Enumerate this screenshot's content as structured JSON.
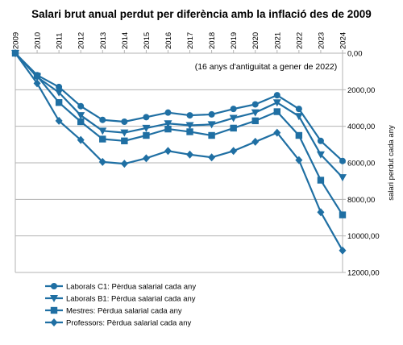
{
  "chart_data": {
    "type": "line",
    "title": "Salari brut anual perdut per diferència amb la inflació des de 2009",
    "annotation": "(16 anys d'antiguitat a gener de 2022)",
    "xlabel": "",
    "ylabel": "salari perdut cada any",
    "x": [
      "2009",
      "2010",
      "2011",
      "2012",
      "2013",
      "2014",
      "2015",
      "2016",
      "2017",
      "2018",
      "2019",
      "2020",
      "2021",
      "2022",
      "2023",
      "2024"
    ],
    "yticks": [
      "0,00",
      "2000,00",
      "4000,00",
      "6000,00",
      "8000,00",
      "10000,00",
      "12000,00"
    ],
    "ylim": [
      0,
      12000
    ],
    "y_inverted": true,
    "y_axis_side": "right",
    "x_axis_position": "top",
    "grid": "horizontal",
    "legend_placement": "bottom-left",
    "series": [
      {
        "name": "Laborals C1: Pèrdua salarial cada any",
        "marker": "circle",
        "color": "#1f6fa3",
        "values": [
          0,
          1200,
          1850,
          2900,
          3650,
          3750,
          3500,
          3250,
          3400,
          3350,
          3050,
          2800,
          2300,
          3050,
          4800,
          5900
        ]
      },
      {
        "name": "Laborals B1: Pèrdua salarial cada any",
        "marker": "triangle-down",
        "color": "#1f6fa3",
        "values": [
          0,
          1300,
          2150,
          3400,
          4250,
          4350,
          4100,
          3850,
          3950,
          3900,
          3550,
          3250,
          2700,
          3450,
          5550,
          6800
        ]
      },
      {
        "name": "Mestres: Pèrdua salarial cada any",
        "marker": "square",
        "color": "#1f6fa3",
        "values": [
          0,
          1250,
          2700,
          3750,
          4700,
          4800,
          4500,
          4150,
          4300,
          4500,
          4100,
          3700,
          3200,
          4500,
          6950,
          8850
        ]
      },
      {
        "name": "Professors: Pèrdua salarial cada any",
        "marker": "diamond",
        "color": "#1f6fa3",
        "values": [
          0,
          1650,
          3700,
          4750,
          5950,
          6050,
          5750,
          5350,
          5550,
          5700,
          5350,
          4850,
          4350,
          5850,
          8700,
          10800
        ]
      }
    ]
  }
}
